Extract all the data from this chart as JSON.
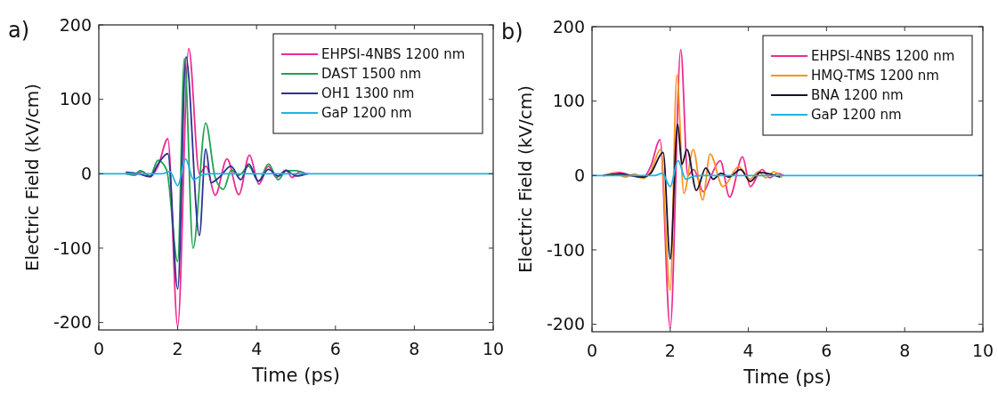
{
  "chart_data": [
    {
      "type": "line",
      "title": "a)",
      "xlabel": "Time (ps)",
      "ylabel": "Electric Field (kV/cm)",
      "xlim": [
        0,
        10
      ],
      "ylim": [
        -210,
        200
      ],
      "xticks": [
        0,
        2,
        4,
        6,
        8,
        10
      ],
      "yticks": [
        -200,
        -100,
        0,
        100,
        200
      ],
      "legend": "top right",
      "grid": false,
      "series": [
        {
          "name": "EHPSI-4NBS 1200 nm",
          "color": "#ee2a90",
          "x": [
            0.7,
            0.9,
            1.1,
            1.3,
            1.5,
            1.75,
            2.0,
            2.28,
            2.55,
            2.72,
            2.95,
            3.25,
            3.55,
            3.82,
            4.06,
            4.3,
            4.5,
            4.75,
            4.9,
            5.1,
            5.25
          ],
          "values": [
            0,
            -2,
            3,
            -4,
            10,
            47,
            -205,
            168,
            0,
            10,
            -29,
            20,
            -28,
            25,
            -14,
            10,
            -5,
            5,
            -5,
            3,
            0
          ]
        },
        {
          "name": "DAST 1500 nm",
          "color": "#21a350",
          "x": [
            0.7,
            0.9,
            1.05,
            1.3,
            1.5,
            1.72,
            2.0,
            2.17,
            2.39,
            2.71,
            2.95,
            3.16,
            3.36,
            3.55,
            3.8,
            4.05,
            4.3,
            4.55,
            4.75,
            5.0,
            5.2
          ],
          "values": [
            0,
            -1,
            4,
            -3,
            18,
            5,
            -118,
            155,
            -100,
            68,
            -5,
            -21,
            5,
            -2,
            10,
            -10,
            13,
            -8,
            4,
            4,
            0
          ]
        },
        {
          "name": "OH1 1300 nm",
          "color": "#2e3192",
          "x": [
            0.7,
            1.0,
            1.3,
            1.5,
            1.75,
            2.0,
            2.21,
            2.55,
            2.71,
            2.85,
            3.05,
            3.35,
            3.6,
            3.8,
            4.05,
            4.3,
            4.55,
            4.75,
            5.0,
            5.3
          ],
          "values": [
            2,
            0,
            -4,
            13,
            27,
            -155,
            157,
            -83,
            33,
            -12,
            -5,
            10,
            -8,
            13,
            -10,
            6,
            -3,
            4,
            -3,
            0
          ]
        },
        {
          "name": "GaP 1200 nm",
          "color": "#1fb2e6",
          "x": [
            0,
            1.6,
            1.8,
            2.0,
            2.2,
            2.4,
            2.6,
            2.8,
            10
          ],
          "values": [
            0,
            0,
            3,
            -16,
            20,
            -8,
            -2,
            0,
            0
          ]
        }
      ]
    },
    {
      "type": "line",
      "title": "b)",
      "xlabel": "Time (ps)",
      "ylabel": "Electric Field (kV/cm)",
      "xlim": [
        0,
        10
      ],
      "ylim": [
        -210,
        200
      ],
      "xticks": [
        0,
        2,
        4,
        6,
        8,
        10
      ],
      "yticks": [
        -200,
        -100,
        0,
        100,
        200
      ],
      "legend": "top right",
      "grid": false,
      "series": [
        {
          "name": "EHPSI-4NBS 1200 nm",
          "color": "#ee2a90",
          "x": [
            0.3,
            0.7,
            1.0,
            1.3,
            1.5,
            1.74,
            2.0,
            2.27,
            2.45,
            2.6,
            2.85,
            3.05,
            3.28,
            3.52,
            3.85,
            4.05,
            4.35,
            4.55,
            4.75,
            4.9
          ],
          "values": [
            0,
            4,
            0,
            -3,
            12,
            48,
            -205,
            169,
            0,
            8,
            -22,
            0,
            20,
            -29,
            25,
            -15,
            8,
            -3,
            3,
            0
          ]
        },
        {
          "name": "HMQ-TMS 1200 nm",
          "color": "#f7941d",
          "x": [
            0.3,
            0.6,
            0.85,
            1.1,
            1.3,
            1.5,
            1.75,
            2.0,
            2.17,
            2.35,
            2.59,
            2.83,
            3.02,
            3.35,
            3.75,
            4.05,
            4.25,
            4.45,
            4.65,
            4.85
          ],
          "values": [
            0,
            3,
            -2,
            2,
            -4,
            5,
            35,
            -154,
            135,
            -24,
            35,
            -33,
            29,
            -15,
            12,
            -5,
            5,
            -3,
            5,
            -2
          ]
        },
        {
          "name": "BNA 1200 nm",
          "color": "#1a1028",
          "x": [
            0.3,
            0.7,
            1.0,
            1.3,
            1.5,
            1.82,
            2.0,
            2.19,
            2.3,
            2.43,
            2.67,
            2.91,
            3.1,
            3.3,
            3.5,
            3.8,
            4.05,
            4.3,
            4.55,
            4.8
          ],
          "values": [
            0,
            2,
            0,
            -2,
            3,
            31,
            -112,
            69,
            15,
            35,
            -20,
            10,
            -5,
            3,
            -2,
            8,
            -8,
            4,
            2,
            -2
          ]
        },
        {
          "name": "GaP 1200 nm",
          "color": "#1fb2e6",
          "x": [
            0,
            1.6,
            1.8,
            2.0,
            2.2,
            2.4,
            2.6,
            2.8,
            10
          ],
          "values": [
            0,
            0,
            3,
            -15,
            20,
            -5,
            -1,
            0,
            0
          ]
        }
      ]
    }
  ]
}
